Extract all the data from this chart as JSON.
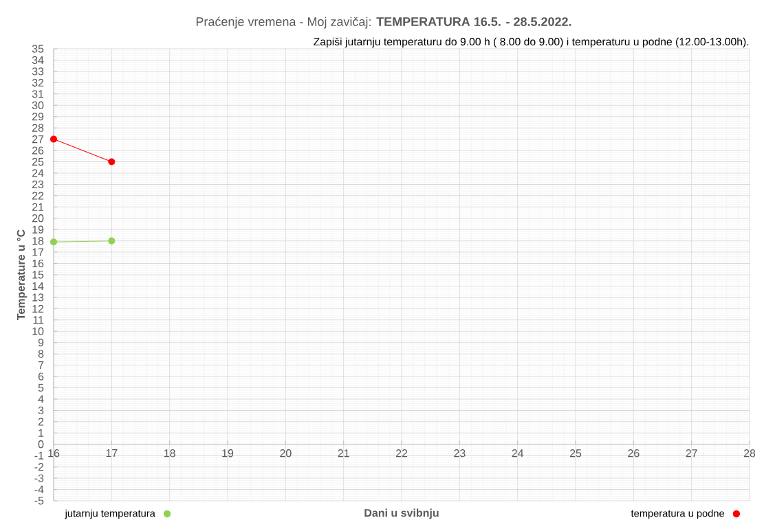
{
  "chart_data": {
    "type": "line",
    "title": "Praćenje vremena - Moj zavičaj: **TEMPERATURA 16.5. - 28.5.2022.**",
    "subtitle": "Zapiši jutarnju temperaturu do 9.00 h ( 8.00 do 9.00) i temperaturu u podne (12.00-13.00h).",
    "xlabel": "Dani u svibnju",
    "ylabel": "Temperature u °C",
    "x": [
      16,
      17
    ],
    "series": [
      {
        "name": "jutarnju temperatura",
        "color": "#92d050",
        "values": [
          17.9,
          18
        ]
      },
      {
        "name": "temperatura u podne",
        "color": "#ff0000",
        "values": [
          27,
          25
        ]
      }
    ],
    "xlim": [
      16,
      28
    ],
    "xticks": [
      16,
      17,
      18,
      19,
      20,
      21,
      22,
      23,
      24,
      25,
      26,
      27,
      28
    ],
    "ylim": [
      -5,
      35
    ],
    "yticks": [
      -5,
      -4,
      -3,
      -2,
      -1,
      0,
      1,
      2,
      3,
      4,
      5,
      6,
      7,
      8,
      9,
      10,
      11,
      12,
      13,
      14,
      15,
      16,
      17,
      18,
      19,
      20,
      21,
      22,
      23,
      24,
      25,
      26,
      27,
      28,
      29,
      30,
      31,
      32,
      33,
      34,
      35
    ],
    "grid": true,
    "legend": "bottom",
    "marker": "circle",
    "line_style": "solid"
  }
}
